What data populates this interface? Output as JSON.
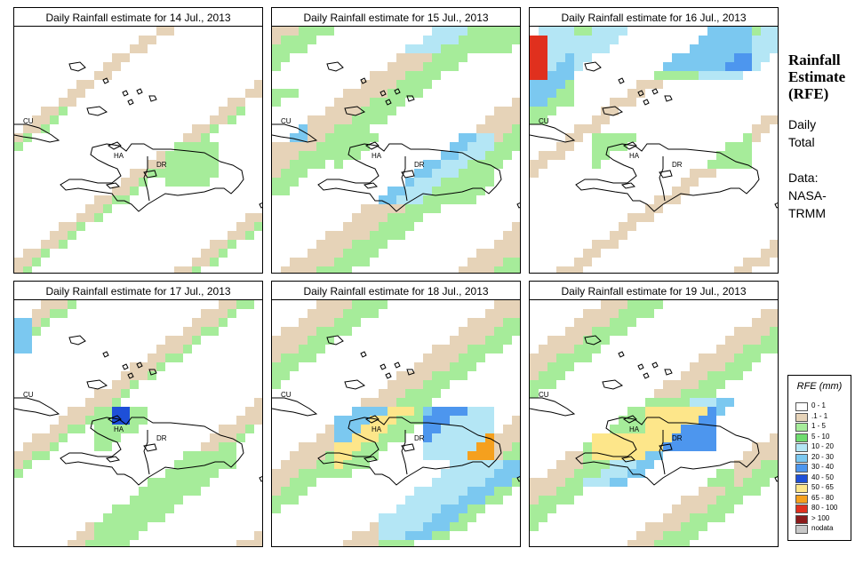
{
  "panels": [
    {
      "title": "Daily Rainfall estimate for  14 Jul., 2013"
    },
    {
      "title": "Daily Rainfall estimate for  15 Jul., 2013"
    },
    {
      "title": "Daily Rainfall estimate for  16 Jul., 2013"
    },
    {
      "title": "Daily Rainfall estimate for  17 Jul., 2013"
    },
    {
      "title": "Daily Rainfall estimate for  18 Jul., 2013"
    },
    {
      "title": "Daily Rainfall estimate for  19 Jul., 2013"
    }
  ],
  "map_labels": {
    "cu": "CU",
    "ha": "HA",
    "dr": "DR"
  },
  "side": {
    "title_line1": "Rainfall",
    "title_line2": "Estimate",
    "title_line3": "(RFE)",
    "daily": "Daily",
    "total": "Total",
    "data_label": "Data:",
    "source1": "NASA-",
    "source2": "TRMM"
  },
  "legend": {
    "title": "RFE (mm)",
    "items": [
      {
        "label": "0 - 1",
        "color": "#ffffff"
      },
      {
        "label": ".1 - 1",
        "color": "#e6d3b8"
      },
      {
        "label": "1 - 5",
        "color": "#a6ec9a"
      },
      {
        "label": "5 - 10",
        "color": "#6fdc6f"
      },
      {
        "label": "10 - 20",
        "color": "#b4e6f5"
      },
      {
        "label": "20 - 30",
        "color": "#7bc8f0"
      },
      {
        "label": "30 - 40",
        "color": "#4d96ee"
      },
      {
        "label": "40 - 50",
        "color": "#1e4fd8"
      },
      {
        "label": "50 - 65",
        "color": "#fde68a"
      },
      {
        "label": "65 - 80",
        "color": "#f5a01e"
      },
      {
        "label": "80 - 100",
        "color": "#e0301e"
      },
      {
        "label": "> 100",
        "color": "#8b1a1a"
      },
      {
        "label": "nodata",
        "color": "#c8c8c8"
      }
    ]
  }
}
